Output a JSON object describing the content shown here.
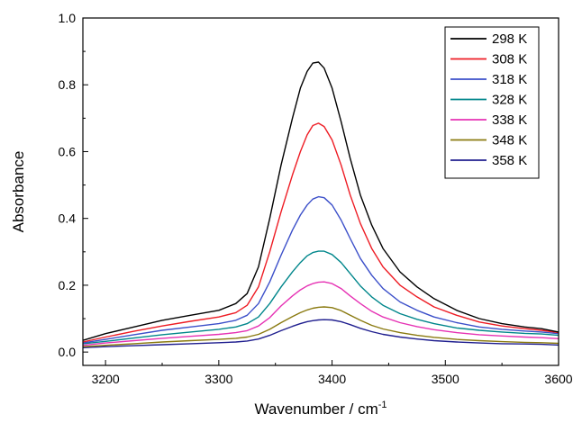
{
  "chart_data": {
    "type": "line",
    "xlabel": "Wavenumber / cm",
    "xlabel_sup": "-1",
    "ylabel": "Absorbance",
    "xlim": [
      3180,
      3600
    ],
    "ylim": [
      -0.04,
      1.0
    ],
    "x_ticks": [
      3200,
      3300,
      3400,
      3500,
      3600
    ],
    "x_tick_labels": [
      "3200",
      "3300",
      "3400",
      "3500",
      "3600"
    ],
    "y_ticks": [
      0.0,
      0.2,
      0.4,
      0.6,
      0.8,
      1.0
    ],
    "y_tick_labels": [
      "0.0",
      "0.2",
      "0.4",
      "0.6",
      "0.8",
      "1.0"
    ],
    "grid": false,
    "legend_position": "top-right",
    "x": [
      3180,
      3200,
      3225,
      3250,
      3275,
      3300,
      3315,
      3325,
      3335,
      3345,
      3355,
      3365,
      3372,
      3378,
      3383,
      3388,
      3393,
      3400,
      3408,
      3416,
      3425,
      3435,
      3445,
      3460,
      3475,
      3490,
      3510,
      3530,
      3550,
      3570,
      3585,
      3600
    ],
    "series": [
      {
        "name": "298 K",
        "color": "#000000",
        "values": [
          0.035,
          0.055,
          0.075,
          0.095,
          0.11,
          0.125,
          0.145,
          0.175,
          0.255,
          0.4,
          0.56,
          0.7,
          0.79,
          0.84,
          0.865,
          0.868,
          0.85,
          0.79,
          0.69,
          0.58,
          0.47,
          0.38,
          0.31,
          0.24,
          0.195,
          0.16,
          0.125,
          0.1,
          0.085,
          0.075,
          0.07,
          0.06
        ]
      },
      {
        "name": "308 K",
        "color": "#ee1c24",
        "values": [
          0.03,
          0.045,
          0.062,
          0.078,
          0.092,
          0.105,
          0.118,
          0.14,
          0.195,
          0.3,
          0.42,
          0.53,
          0.6,
          0.65,
          0.678,
          0.685,
          0.675,
          0.635,
          0.56,
          0.47,
          0.385,
          0.31,
          0.255,
          0.2,
          0.165,
          0.135,
          0.11,
          0.09,
          0.078,
          0.07,
          0.065,
          0.058
        ]
      },
      {
        "name": "318 K",
        "color": "#3b4fc9",
        "values": [
          0.027,
          0.038,
          0.052,
          0.065,
          0.075,
          0.085,
          0.095,
          0.11,
          0.145,
          0.21,
          0.29,
          0.365,
          0.41,
          0.44,
          0.458,
          0.465,
          0.462,
          0.44,
          0.395,
          0.34,
          0.28,
          0.23,
          0.19,
          0.15,
          0.125,
          0.105,
          0.088,
          0.075,
          0.068,
          0.063,
          0.06,
          0.055
        ]
      },
      {
        "name": "328 K",
        "color": "#00868b",
        "values": [
          0.025,
          0.032,
          0.042,
          0.052,
          0.06,
          0.068,
          0.075,
          0.085,
          0.105,
          0.145,
          0.195,
          0.24,
          0.268,
          0.288,
          0.298,
          0.302,
          0.302,
          0.292,
          0.268,
          0.235,
          0.198,
          0.165,
          0.14,
          0.115,
          0.098,
          0.085,
          0.072,
          0.065,
          0.06,
          0.056,
          0.054,
          0.05
        ]
      },
      {
        "name": "338 K",
        "color": "#e632b4",
        "values": [
          0.02,
          0.027,
          0.034,
          0.041,
          0.047,
          0.053,
          0.058,
          0.064,
          0.078,
          0.103,
          0.138,
          0.168,
          0.186,
          0.198,
          0.205,
          0.209,
          0.21,
          0.205,
          0.19,
          0.168,
          0.145,
          0.122,
          0.105,
          0.088,
          0.076,
          0.067,
          0.058,
          0.052,
          0.048,
          0.045,
          0.043,
          0.04
        ]
      },
      {
        "name": "348 K",
        "color": "#8a7a10",
        "values": [
          0.016,
          0.02,
          0.025,
          0.03,
          0.034,
          0.038,
          0.041,
          0.045,
          0.053,
          0.068,
          0.088,
          0.106,
          0.118,
          0.126,
          0.131,
          0.134,
          0.135,
          0.133,
          0.124,
          0.11,
          0.095,
          0.08,
          0.069,
          0.058,
          0.05,
          0.044,
          0.038,
          0.034,
          0.031,
          0.029,
          0.028,
          0.026
        ]
      },
      {
        "name": "358 K",
        "color": "#201f8f",
        "values": [
          0.013,
          0.016,
          0.019,
          0.022,
          0.025,
          0.028,
          0.03,
          0.033,
          0.039,
          0.05,
          0.064,
          0.077,
          0.085,
          0.091,
          0.094,
          0.096,
          0.097,
          0.096,
          0.091,
          0.082,
          0.071,
          0.061,
          0.053,
          0.045,
          0.039,
          0.034,
          0.03,
          0.027,
          0.025,
          0.024,
          0.023,
          0.021
        ]
      }
    ]
  }
}
